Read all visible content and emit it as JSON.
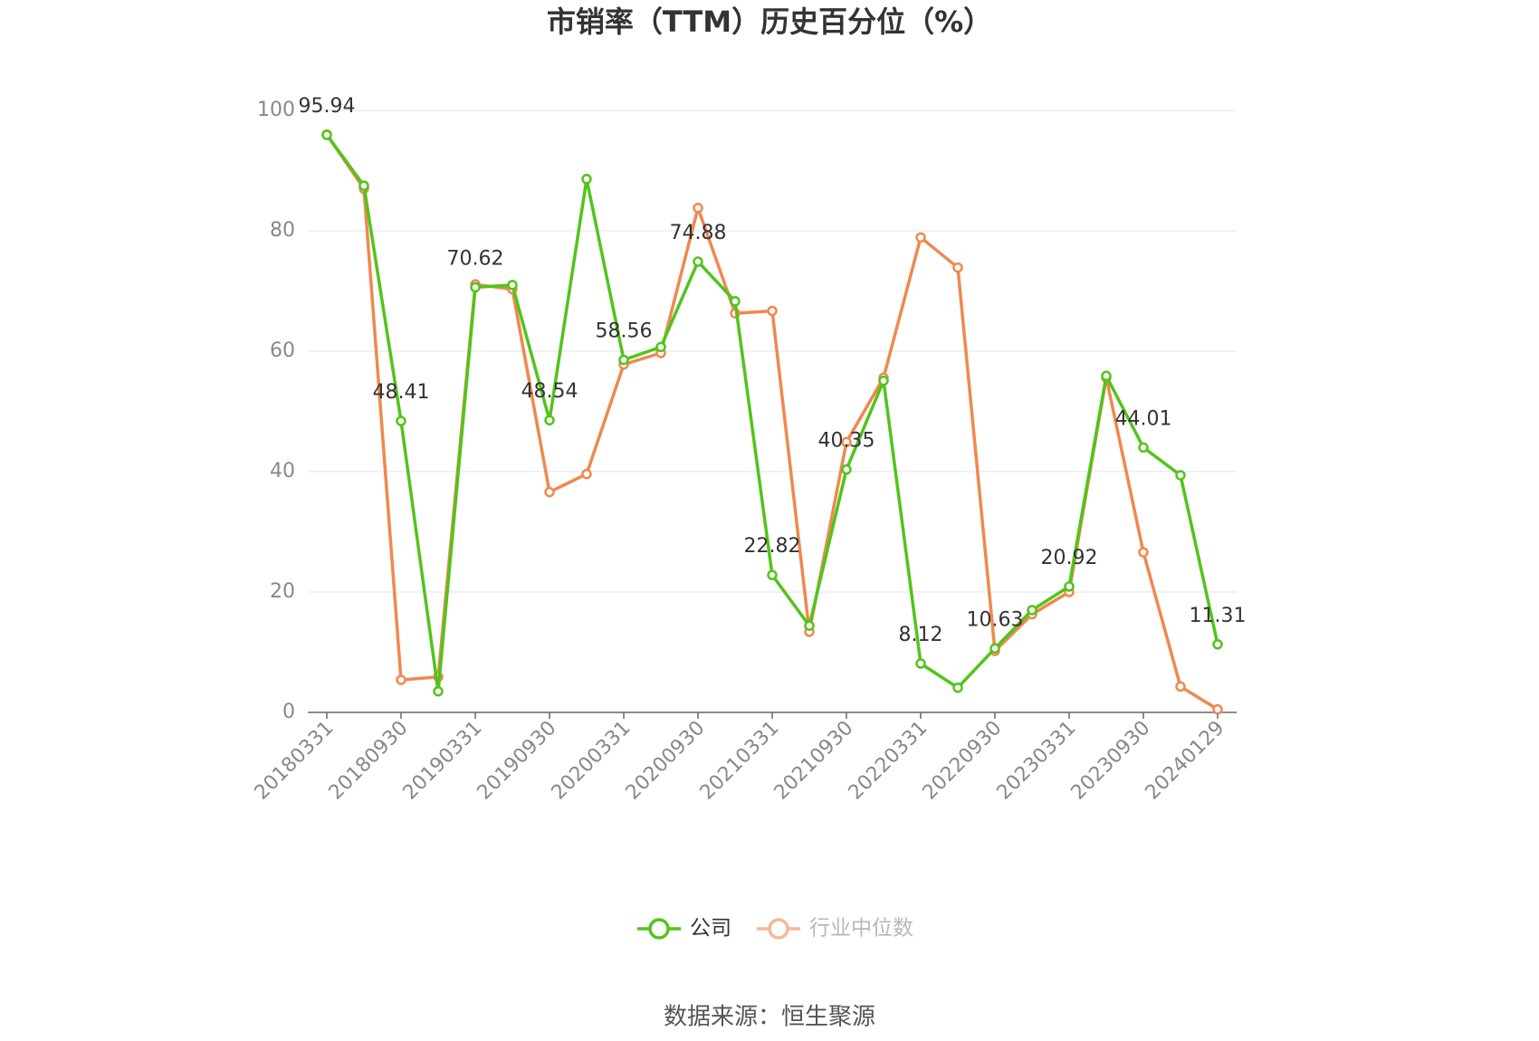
{
  "chart_data": {
    "type": "line",
    "title": "市销率（TTM）历史百分位（%）",
    "source": "数据来源：恒生聚源",
    "categories": [
      "20180331",
      null,
      "20180930",
      null,
      "20190331",
      null,
      "20190930",
      null,
      "20200331",
      null,
      "20200930",
      null,
      "20210331",
      null,
      "20210930",
      null,
      "20220331",
      null,
      "20220930",
      null,
      "20230331",
      null,
      "20230930",
      null,
      "20240129"
    ],
    "series": [
      {
        "name": "公司",
        "color": "#52c41a",
        "values": [
          95.94,
          87.5,
          48.41,
          3.5,
          70.62,
          71.0,
          48.54,
          88.6,
          58.56,
          60.7,
          74.88,
          68.3,
          22.82,
          14.4,
          40.35,
          55.1,
          8.12,
          4.1,
          10.63,
          17.0,
          20.92,
          55.9,
          44.01,
          39.4,
          11.31
        ],
        "value_labels": [
          "95.94",
          null,
          "48.41",
          null,
          "70.62",
          null,
          "48.54",
          null,
          "58.56",
          null,
          "74.88",
          null,
          "22.82",
          null,
          "40.35",
          null,
          "8.12",
          null,
          "10.63",
          null,
          "20.92",
          null,
          "44.01",
          null,
          "11.31"
        ]
      },
      {
        "name": "行业中位数",
        "color": "#f0884f",
        "values": [
          96.0,
          87.0,
          5.4,
          5.9,
          71.1,
          70.3,
          36.6,
          39.6,
          57.8,
          59.7,
          83.8,
          66.3,
          66.7,
          13.4,
          44.9,
          55.6,
          78.9,
          73.9,
          10.2,
          16.3,
          20.0,
          55.6,
          26.6,
          4.3,
          0.5
        ]
      }
    ],
    "ylim": [
      0,
      100
    ],
    "yticks": [
      0,
      20,
      40,
      60,
      80,
      100
    ],
    "grid": true,
    "legend": "bottom"
  }
}
